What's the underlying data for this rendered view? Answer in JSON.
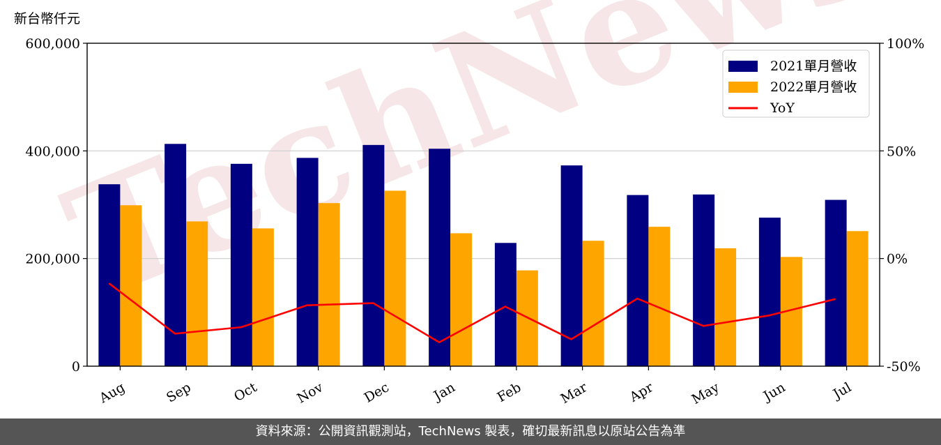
{
  "chart_data": {
    "type": "bar",
    "unit_label": "新台幣仟元",
    "categories": [
      "Aug",
      "Sep",
      "Oct",
      "Nov",
      "Dec",
      "Jan",
      "Feb",
      "Mar",
      "Apr",
      "May",
      "Jun",
      "Jul"
    ],
    "series": [
      {
        "name": "2021單月營收",
        "type": "bar",
        "axis": "left",
        "color": "#000080",
        "values": [
          338000,
          413000,
          376000,
          387000,
          411000,
          404000,
          229000,
          373000,
          318000,
          319000,
          276000,
          309000
        ]
      },
      {
        "name": "2022單月營收",
        "type": "bar",
        "axis": "left",
        "color": "#ffa500",
        "values": [
          299000,
          269000,
          256000,
          303000,
          326000,
          247000,
          178000,
          233000,
          259000,
          219000,
          203000,
          251000
        ]
      },
      {
        "name": "YoY",
        "type": "line",
        "axis": "right",
        "color": "#ff0000",
        "values": [
          -11.5,
          -34.9,
          -31.9,
          -21.7,
          -20.7,
          -38.9,
          -22.3,
          -37.5,
          -18.6,
          -31.3,
          -26.4,
          -18.8
        ]
      }
    ],
    "y_left": {
      "ylim": [
        0,
        600000
      ],
      "ticks": [
        0,
        200000,
        400000,
        600000
      ],
      "tick_labels": [
        "0",
        "200,000",
        "400,000",
        "600,000"
      ]
    },
    "y_right": {
      "ylim": [
        -50,
        100
      ],
      "ticks": [
        -50,
        0,
        50,
        100
      ],
      "tick_labels": [
        "-50%",
        "0%",
        "50%",
        "100%"
      ]
    },
    "grid": "horizontal",
    "legend_position": "top-right",
    "watermark": "TechNews"
  },
  "footer": {
    "source_text": "資料來源：公開資訊觀測站，TechNews 製表，確切最新訊息以原站公告為準"
  }
}
